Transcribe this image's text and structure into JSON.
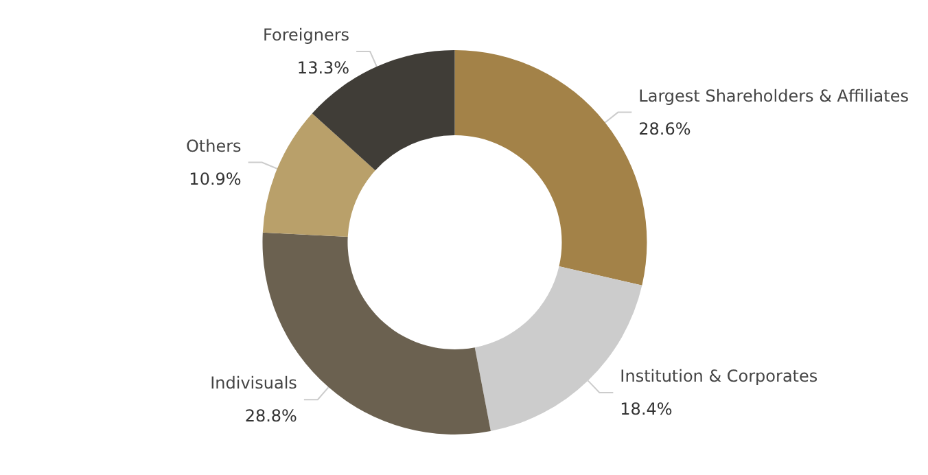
{
  "chart_data": {
    "type": "donut",
    "categories": [
      "Largest Shareholders & Affiliates",
      "Institution & Corporates",
      "Indivisuals",
      "Others",
      "Foreigners"
    ],
    "values": [
      28.6,
      18.4,
      28.8,
      10.9,
      13.3
    ],
    "value_labels": [
      "28.6%",
      "18.4%",
      "28.8%",
      "10.9%",
      "13.3%"
    ],
    "colors": [
      "#a38248",
      "#cccccc",
      "#6b6150",
      "#b9a06a",
      "#403d37"
    ],
    "legend": false
  }
}
